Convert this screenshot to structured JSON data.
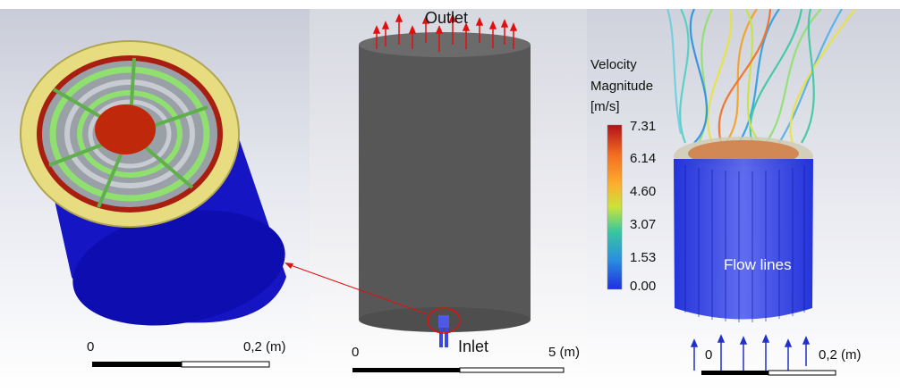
{
  "left_panel": {
    "scale_start": "0",
    "scale_end": "0,2 (m)"
  },
  "middle_panel": {
    "outlet_label": "Outlet",
    "inlet_label": "Inlet",
    "scale_start": "0",
    "scale_end": "5 (m)"
  },
  "right_panel": {
    "legend": {
      "title_line1": "Velocity",
      "title_line2": "Magnitude",
      "unit": "[m/s]",
      "ticks": [
        "7.31",
        "6.14",
        "4.60",
        "3.07",
        "1.53",
        "0.00"
      ],
      "colormap": [
        "#d7191c",
        "#f46d20",
        "#fdae2e",
        "#e8e43a",
        "#8fdc4a",
        "#38c7a0",
        "#2a8fe0",
        "#1f3be0"
      ]
    },
    "flow_label": "Flow lines",
    "scale_start": "0",
    "scale_end": "0,2 (m)"
  },
  "colors": {
    "cylinder_blue": "#1010c8",
    "cap_yellow": "#e8dc80",
    "inner_red": "#c0280c",
    "vanes_green": "#8fe06e",
    "tank_gray": "#5a5a5a",
    "arrow_red": "#e01010"
  }
}
